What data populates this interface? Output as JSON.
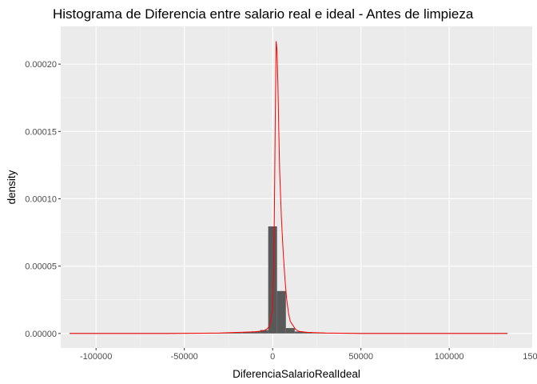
{
  "chart_data": {
    "type": "bar",
    "title": "Histograma de Diferencia entre salario real e ideal - Antes de limpieza",
    "xlabel": "DiferenciaSalarioRealIdeal",
    "ylabel": "density",
    "xlim": [
      -120000,
      147000
    ],
    "ylim": [
      -1.08e-05,
      0.000228
    ],
    "x_ticks": [
      {
        "value": -100000,
        "label": "-100000"
      },
      {
        "value": -50000,
        "label": "-50000"
      },
      {
        "value": 0,
        "label": "0"
      },
      {
        "value": 50000,
        "label": "50000"
      },
      {
        "value": 100000,
        "label": "100000"
      },
      {
        "value": 150000,
        "label": "150000"
      }
    ],
    "y_ticks": [
      {
        "value": 0,
        "label": "0.00000"
      },
      {
        "value": 5e-05,
        "label": "0.00005"
      },
      {
        "value": 0.0001,
        "label": "0.00010"
      },
      {
        "value": 0.00015,
        "label": "0.00015"
      },
      {
        "value": 0.0002,
        "label": "0.00020"
      }
    ],
    "grid": true,
    "series": [
      {
        "kind": "histogram",
        "color": "#595959",
        "bins": [
          {
            "x0": -115000,
            "x1": -27000,
            "density": 0
          },
          {
            "x0": -27000,
            "x1": -22000,
            "density": 5e-07
          },
          {
            "x0": -22000,
            "x1": -17000,
            "density": 6e-07
          },
          {
            "x0": -17000,
            "x1": -12000,
            "density": 1e-06
          },
          {
            "x0": -12000,
            "x1": -7000,
            "density": 1.5e-06
          },
          {
            "x0": -7000,
            "x1": -2500,
            "density": 2.5e-06
          },
          {
            "x0": -2500,
            "x1": 2500,
            "density": 7.95e-05
          },
          {
            "x0": 2500,
            "x1": 7500,
            "density": 3.15e-05
          },
          {
            "x0": 7500,
            "x1": 12500,
            "density": 4e-06
          },
          {
            "x0": 12500,
            "x1": 17500,
            "density": 1.5e-06
          },
          {
            "x0": 17500,
            "x1": 22500,
            "density": 1e-06
          },
          {
            "x0": 22500,
            "x1": 27500,
            "density": 4e-07
          },
          {
            "x0": 27500,
            "x1": 133000,
            "density": 0
          }
        ]
      },
      {
        "kind": "density",
        "color": "#ff0000",
        "x": [
          -115000,
          -60000,
          -30000,
          -10000,
          -5000,
          -3000,
          -1500,
          0,
          500,
          1000,
          1500,
          2000,
          2500,
          3000,
          3500,
          4000,
          5000,
          6000,
          7000,
          8000,
          9000,
          10000,
          11000,
          12000,
          13000,
          15000,
          20000,
          30000,
          50000,
          133000
        ],
        "y": [
          0,
          0,
          3e-07,
          1.2e-06,
          2e-06,
          3.5e-06,
          6e-06,
          1.8e-05,
          4.5e-05,
          9e-05,
          0.00016,
          0.000217,
          0.00021,
          0.000185,
          0.00015,
          0.00012,
          8.5e-05,
          6e-05,
          4e-05,
          2.5e-05,
          1.5e-05,
          9e-06,
          7e-06,
          5e-06,
          3e-06,
          1.5e-06,
          8e-07,
          3e-07,
          0,
          0
        ]
      }
    ]
  }
}
